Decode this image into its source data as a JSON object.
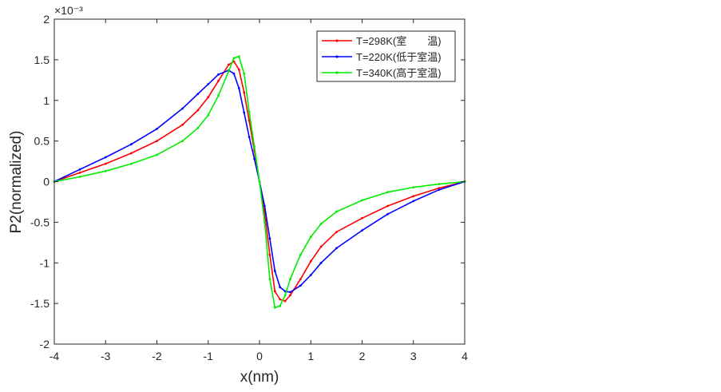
{
  "chart_data": {
    "type": "line",
    "title": "",
    "xlabel": "x(nm)",
    "ylabel": "P2(normalized)",
    "xlim": [
      -4,
      4
    ],
    "ylim": [
      -2,
      2
    ],
    "y_exponent_label": "×10⁻³",
    "y_scale_factor": 0.001,
    "grid": false,
    "legend_position": "top-right",
    "x_ticks": [
      -4,
      -3,
      -2,
      -1,
      0,
      1,
      2,
      3,
      4
    ],
    "x_tick_labels": [
      "-4",
      "-3",
      "-2",
      "-1",
      "0",
      "1",
      "2",
      "3",
      "4"
    ],
    "y_ticks": [
      -2,
      -1.5,
      -1,
      -0.5,
      0,
      0.5,
      1,
      1.5,
      2
    ],
    "y_tick_labels": [
      "-2",
      "-1.5",
      "-1",
      "-0.5",
      "0",
      "0.5",
      "1",
      "1.5",
      "2"
    ],
    "series": [
      {
        "name": "T=298K(室　　温)",
        "color": "#ff0000",
        "x": [
          -4,
          -3.5,
          -3,
          -2.5,
          -2,
          -1.5,
          -1.2,
          -1,
          -0.8,
          -0.6,
          -0.5,
          -0.4,
          -0.3,
          -0.2,
          -0.1,
          0,
          0.1,
          0.2,
          0.3,
          0.4,
          0.5,
          0.6,
          0.8,
          1,
          1.2,
          1.5,
          2,
          2.5,
          3,
          3.5,
          4
        ],
        "y": [
          0,
          0.11,
          0.22,
          0.35,
          0.5,
          0.7,
          0.88,
          1.04,
          1.24,
          1.44,
          1.48,
          1.38,
          1.1,
          0.75,
          0.38,
          0,
          -0.38,
          -0.9,
          -1.35,
          -1.45,
          -1.47,
          -1.4,
          -1.2,
          -0.98,
          -0.8,
          -0.62,
          -0.45,
          -0.3,
          -0.18,
          -0.08,
          0
        ]
      },
      {
        "name": "T=220K(低于室温)",
        "color": "#0000ff",
        "x": [
          -4,
          -3.5,
          -3,
          -2.5,
          -2,
          -1.5,
          -1.2,
          -1,
          -0.8,
          -0.6,
          -0.5,
          -0.4,
          -0.3,
          -0.2,
          -0.1,
          0,
          0.1,
          0.2,
          0.3,
          0.4,
          0.5,
          0.6,
          0.8,
          1,
          1.2,
          1.5,
          2,
          2.5,
          3,
          3.5,
          4
        ],
        "y": [
          0,
          0.15,
          0.3,
          0.46,
          0.65,
          0.9,
          1.08,
          1.2,
          1.32,
          1.37,
          1.33,
          1.15,
          0.85,
          0.55,
          0.28,
          0,
          -0.3,
          -0.7,
          -1.1,
          -1.3,
          -1.35,
          -1.36,
          -1.28,
          -1.15,
          -1.0,
          -0.82,
          -0.6,
          -0.4,
          -0.24,
          -0.1,
          0
        ]
      },
      {
        "name": "T=340K(高于室温)",
        "color": "#00ee00",
        "x": [
          -4,
          -3.5,
          -3,
          -2.5,
          -2,
          -1.5,
          -1.2,
          -1,
          -0.8,
          -0.6,
          -0.5,
          -0.4,
          -0.3,
          -0.2,
          -0.1,
          0,
          0.1,
          0.2,
          0.3,
          0.4,
          0.5,
          0.6,
          0.8,
          1,
          1.2,
          1.5,
          2,
          2.5,
          3,
          3.5,
          4
        ],
        "y": [
          0,
          0.06,
          0.13,
          0.22,
          0.33,
          0.5,
          0.66,
          0.82,
          1.06,
          1.36,
          1.52,
          1.54,
          1.33,
          0.86,
          0.43,
          0,
          -0.5,
          -1.2,
          -1.55,
          -1.53,
          -1.4,
          -1.2,
          -0.9,
          -0.68,
          -0.52,
          -0.37,
          -0.23,
          -0.13,
          -0.07,
          -0.03,
          0
        ]
      }
    ]
  }
}
